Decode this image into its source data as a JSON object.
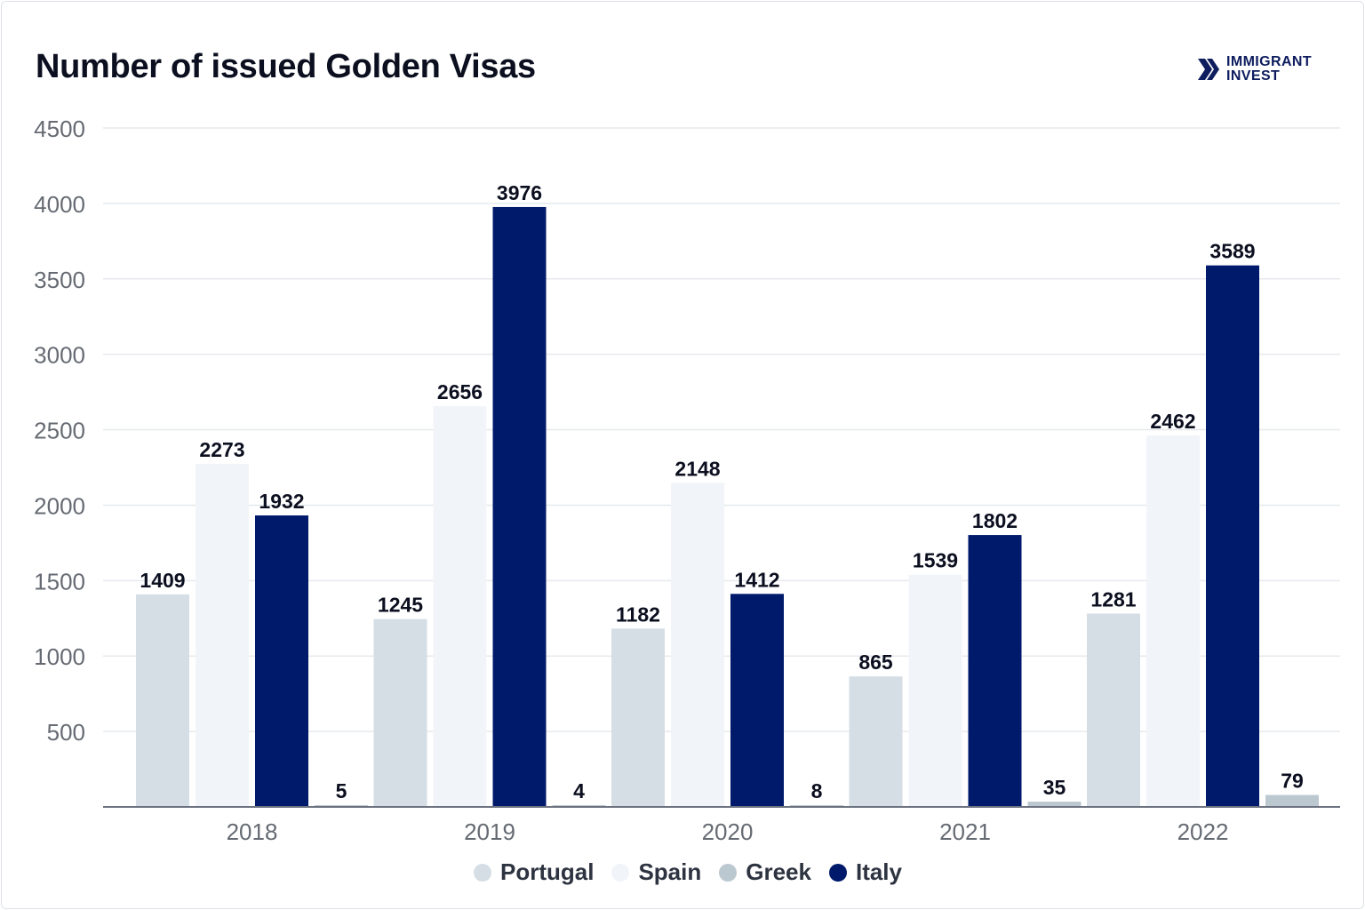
{
  "header": {
    "title": "Number of issued Golden Visas",
    "brand_line1": "IMMIGRANT",
    "brand_line2": "INVEST"
  },
  "colors": {
    "Portugal": "#d4dee4",
    "Spain": "#f1f4f8",
    "Greek": "#bcc8d0",
    "Italy": "#001a6b",
    "grid": "#e6e9ee",
    "axis": "#6b7280",
    "tick_text": "#666b73",
    "label_text": "#0b0f1f"
  },
  "chart_data": {
    "type": "bar",
    "title": "Number of issued Golden Visas",
    "xlabel": "",
    "ylabel": "",
    "categories": [
      "2018",
      "2019",
      "2020",
      "2021",
      "2022"
    ],
    "series": [
      {
        "name": "Portugal",
        "values": [
          1409,
          1245,
          1182,
          865,
          1281
        ]
      },
      {
        "name": "Spain",
        "values": [
          2273,
          2656,
          2148,
          1539,
          2462
        ]
      },
      {
        "name": "Italy",
        "values": [
          1932,
          3976,
          1412,
          1802,
          3589
        ]
      },
      {
        "name": "Greek",
        "values": [
          5,
          4,
          8,
          35,
          79
        ]
      }
    ],
    "ylim": [
      0,
      4500
    ],
    "yticks": [
      "500",
      "1000",
      "1500",
      "2000",
      "2500",
      "3000",
      "3500",
      "4000",
      "4500"
    ],
    "grid": true,
    "data_labels": true,
    "legend_position": "bottom-center",
    "legend": [
      "Portugal",
      "Spain",
      "Greek",
      "Italy"
    ]
  }
}
